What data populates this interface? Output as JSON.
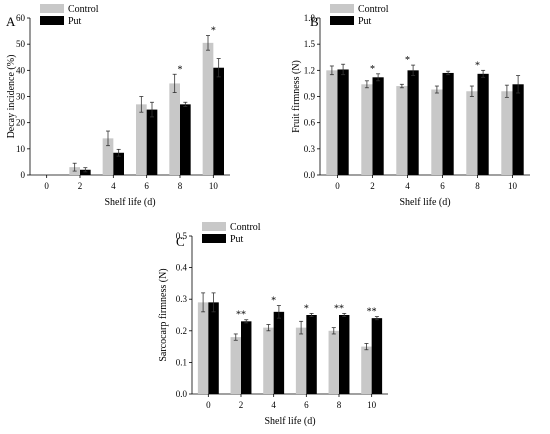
{
  "chart_data": [
    {
      "type": "bar",
      "panel_label": "A",
      "categories": [
        "0",
        "2",
        "4",
        "6",
        "8",
        "10"
      ],
      "series": [
        {
          "name": "Control",
          "values": [
            0,
            3,
            14,
            27,
            35,
            50.5
          ],
          "errors": [
            0,
            1.5,
            2.8,
            3,
            3.5,
            2.8
          ]
        },
        {
          "name": "Put",
          "values": [
            0,
            2,
            8.5,
            25,
            27,
            41
          ],
          "errors": [
            0,
            0.8,
            1.3,
            2.8,
            0.8,
            3.5
          ]
        }
      ],
      "annotations": [
        "",
        "",
        "",
        "",
        "*",
        "*"
      ],
      "xlabel": "Shelf  life (d)",
      "ylabel": "Decay incidence (%)",
      "ylim": [
        0,
        60
      ],
      "yticks": [
        "0",
        "10",
        "20",
        "30",
        "40",
        "50",
        "60"
      ],
      "legend": "top-left",
      "colors": {
        "Control": "#c8c8c8",
        "Put": "#000000"
      }
    },
    {
      "type": "bar",
      "panel_label": "B",
      "categories": [
        "0",
        "2",
        "4",
        "6",
        "8",
        "10"
      ],
      "series": [
        {
          "name": "Control",
          "values": [
            1.2,
            1.04,
            1.02,
            0.98,
            0.96,
            0.96
          ],
          "errors": [
            0.05,
            0.04,
            0.02,
            0.04,
            0.06,
            0.07
          ]
        },
        {
          "name": "Put",
          "values": [
            1.21,
            1.12,
            1.2,
            1.17,
            1.16,
            1.04
          ],
          "errors": [
            0.06,
            0.04,
            0.06,
            0.02,
            0.04,
            0.1
          ]
        }
      ],
      "annotations": [
        "",
        "*",
        "*",
        "",
        "*",
        ""
      ],
      "xlabel": "Shelf  life (d)",
      "ylabel": "Fruit firmness (N)",
      "ylim": [
        0,
        1.8
      ],
      "yticks": [
        "0.0",
        "0.3",
        "0.6",
        "0.9",
        "1.2",
        "1.5",
        "1.8"
      ],
      "legend": "top-left",
      "colors": {
        "Control": "#c8c8c8",
        "Put": "#000000"
      }
    },
    {
      "type": "bar",
      "panel_label": "C",
      "categories": [
        "0",
        "2",
        "4",
        "6",
        "8",
        "10"
      ],
      "series": [
        {
          "name": "Control",
          "values": [
            0.29,
            0.18,
            0.21,
            0.21,
            0.2,
            0.15
          ],
          "errors": [
            0.03,
            0.01,
            0.01,
            0.02,
            0.01,
            0.01
          ]
        },
        {
          "name": "Put",
          "values": [
            0.29,
            0.23,
            0.26,
            0.25,
            0.25,
            0.24
          ],
          "errors": [
            0.03,
            0.005,
            0.02,
            0.005,
            0.005,
            0.005
          ]
        }
      ],
      "annotations": [
        "",
        "**",
        "*",
        "*",
        "**",
        "**"
      ],
      "xlabel": "Shelf  life (d)",
      "ylabel": "Sarcocarp firmness (N)",
      "ylim": [
        0,
        0.5
      ],
      "yticks": [
        "0.0",
        "0.1",
        "0.2",
        "0.3",
        "0.4",
        "0.5"
      ],
      "legend": "top-left",
      "colors": {
        "Control": "#c8c8c8",
        "Put": "#000000"
      }
    }
  ]
}
